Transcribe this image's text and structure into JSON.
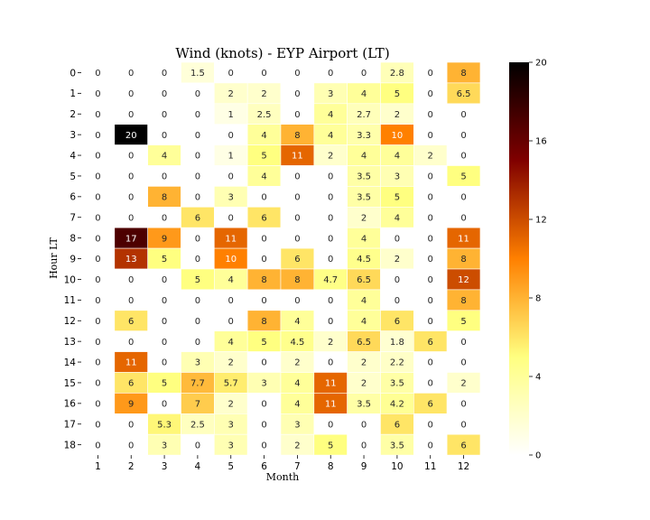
{
  "chart_data": {
    "type": "heatmap",
    "title": "Wind (knots) - EYP Airport (LT)",
    "xlabel": "Month",
    "ylabel": "Hour LT",
    "x_categories": [
      "1",
      "2",
      "3",
      "4",
      "5",
      "6",
      "7",
      "8",
      "9",
      "10",
      "11",
      "12"
    ],
    "y_categories": [
      "0",
      "1",
      "2",
      "3",
      "4",
      "5",
      "6",
      "7",
      "8",
      "9",
      "10",
      "11",
      "12",
      "13",
      "14",
      "15",
      "16",
      "17",
      "18"
    ],
    "values": [
      [
        0,
        0,
        0,
        1.5,
        0,
        0,
        0,
        0,
        0,
        2.8,
        0,
        8
      ],
      [
        0,
        0,
        0,
        0,
        2,
        2,
        0,
        3,
        4,
        5,
        0,
        6.5
      ],
      [
        0,
        0,
        0,
        0,
        1,
        2.5,
        0,
        4,
        2.7,
        2,
        0,
        0
      ],
      [
        0,
        20,
        0,
        0,
        0,
        4,
        8,
        4,
        3.3,
        10,
        0,
        0
      ],
      [
        0,
        0,
        4,
        0,
        1,
        5,
        11,
        2,
        4,
        4,
        2,
        0
      ],
      [
        0,
        0,
        0,
        0,
        0,
        4,
        0,
        0,
        3.5,
        3,
        0,
        5
      ],
      [
        0,
        0,
        8,
        0,
        3,
        0,
        0,
        0,
        3.5,
        5,
        0,
        0
      ],
      [
        0,
        0,
        0,
        6,
        0,
        6,
        0,
        0,
        2,
        4,
        0,
        0
      ],
      [
        0,
        17,
        9,
        0,
        11,
        0,
        0,
        0,
        4,
        0,
        0,
        11
      ],
      [
        0,
        13,
        5,
        0,
        10,
        0,
        6,
        0,
        4.5,
        2,
        0,
        8
      ],
      [
        0,
        0,
        0,
        5,
        4,
        8,
        8,
        4.7,
        6.5,
        0,
        0,
        12
      ],
      [
        0,
        0,
        0,
        0,
        0,
        0,
        0,
        0,
        4,
        0,
        0,
        8
      ],
      [
        0,
        6,
        0,
        0,
        0,
        8,
        4,
        0,
        4,
        6,
        0,
        5
      ],
      [
        0,
        0,
        0,
        0,
        4,
        5,
        4.5,
        2,
        6.5,
        1.8,
        6,
        0
      ],
      [
        0,
        11,
        0,
        3,
        2,
        0,
        2,
        0,
        2,
        2.2,
        0,
        0
      ],
      [
        0,
        6,
        5,
        7.7,
        5.7,
        3,
        4,
        11,
        2,
        3.5,
        0,
        2
      ],
      [
        0,
        9,
        0,
        7,
        2,
        0,
        4,
        11,
        3.5,
        4.2,
        6,
        0
      ],
      [
        0,
        0,
        5.3,
        2.5,
        3,
        0,
        3,
        0,
        0,
        6,
        0,
        0
      ],
      [
        0,
        0,
        3,
        0,
        3,
        0,
        2,
        5,
        0,
        3.5,
        0,
        6
      ]
    ],
    "vmin": 0,
    "vmax": 20,
    "colormap": "afmhot_r",
    "colorbar_ticks": [
      0,
      4,
      8,
      12,
      16,
      20
    ],
    "cell_border_color": "#ffffff"
  }
}
